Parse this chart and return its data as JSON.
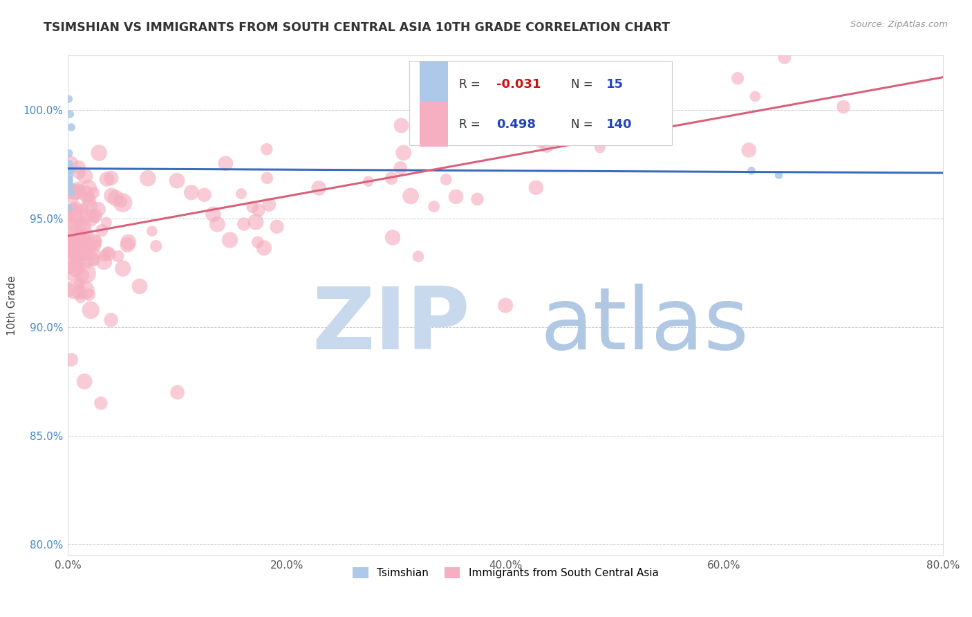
{
  "title": "TSIMSHIAN VS IMMIGRANTS FROM SOUTH CENTRAL ASIA 10TH GRADE CORRELATION CHART",
  "source_text": "Source: ZipAtlas.com",
  "ylabel": "10th Grade",
  "xlabel_vals": [
    0.0,
    20.0,
    40.0,
    60.0,
    80.0
  ],
  "ylabel_vals": [
    80.0,
    85.0,
    90.0,
    95.0,
    100.0
  ],
  "xlim": [
    0.0,
    80.0
  ],
  "ylim": [
    79.5,
    102.5
  ],
  "blue_R": -0.031,
  "blue_N": 15,
  "pink_R": 0.498,
  "pink_N": 140,
  "blue_color": "#adc8e8",
  "pink_color": "#f5afc0",
  "blue_line_color": "#3b6bbf",
  "pink_line_color": "#d9607a",
  "watermark_zip_color": "#c8d8ed",
  "watermark_atlas_color": "#b0c8e4",
  "background_color": "#ffffff",
  "grid_color": "#cccccc",
  "blue_scatter_x": [
    0.05,
    0.18,
    0.3,
    0.08,
    0.12,
    0.2,
    0.15,
    0.1,
    0.25,
    0.22,
    0.28,
    0.06,
    62.5,
    65.0,
    0.1
  ],
  "blue_scatter_y": [
    100.5,
    99.8,
    99.2,
    98.0,
    97.5,
    97.3,
    97.0,
    96.8,
    97.2,
    96.5,
    96.2,
    95.5,
    97.2,
    97.0,
    96.7
  ],
  "blue_scatter_sizes": [
    70,
    70,
    70,
    70,
    70,
    70,
    70,
    70,
    70,
    70,
    70,
    70,
    70,
    70,
    70
  ],
  "pink_line_x0": 0.0,
  "pink_line_y0": 94.2,
  "pink_line_x1": 80.0,
  "pink_line_y1": 101.5,
  "blue_line_x0": 0.0,
  "blue_line_y0": 97.3,
  "blue_line_x1": 80.0,
  "blue_line_y1": 97.1
}
